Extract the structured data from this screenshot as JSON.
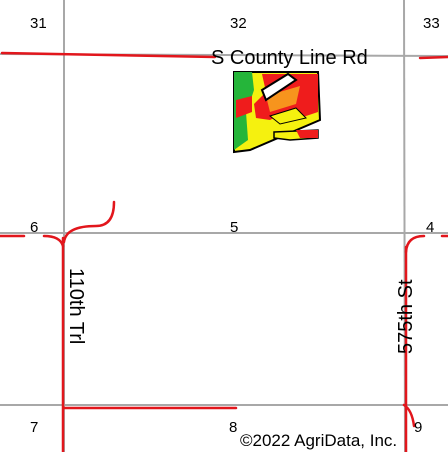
{
  "section_numbers": {
    "s31": "31",
    "s32": "32",
    "s33": "33",
    "s6": "6",
    "s5": "5",
    "s4": "4",
    "s7": "7",
    "s8": "8",
    "s9": "9"
  },
  "roads": {
    "county_line": "S County Line Rd",
    "road_110th": "110th Trl",
    "road_575th": "575th St"
  },
  "copyright": "©2022 AgriData, Inc.",
  "colors": {
    "road_red": "#e2161c",
    "section_gray": "#a8a8a8",
    "soil_red": "#ef1c1c",
    "soil_orange": "#f7941d",
    "soil_yellow": "#f5f10f",
    "soil_green": "#25b53a"
  }
}
